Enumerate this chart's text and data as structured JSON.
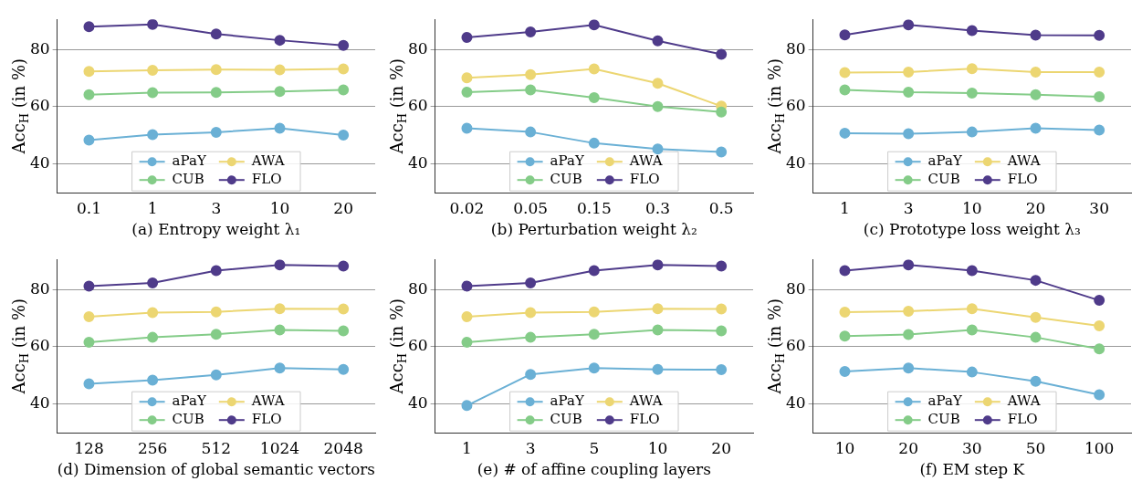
{
  "chart_data": [
    {
      "type": "line",
      "xlabel": "(a) Entropy weight λ₁",
      "ylabel": "Acc$_{H}$ (in %)",
      "categories": [
        "0.1",
        "1",
        "3",
        "10",
        "20"
      ],
      "ylim": [
        30,
        90.5
      ],
      "yticks": [
        40,
        60,
        80
      ],
      "grid": "y",
      "legend": "bottom",
      "marker": "circle",
      "series": [
        {
          "name": "aPaY",
          "color": "#6ab0d5",
          "values": [
            48.4,
            50.3,
            51.1,
            52.5,
            50.1
          ]
        },
        {
          "name": "CUB",
          "color": "#84cc88",
          "values": [
            64.2,
            64.9,
            65.0,
            65.3,
            65.9
          ]
        },
        {
          "name": "AWA",
          "color": "#ecd672",
          "values": [
            72.3,
            72.7,
            73.0,
            72.9,
            73.2
          ]
        },
        {
          "name": "FLO",
          "color": "#4f3b8a",
          "values": [
            87.9,
            88.7,
            85.4,
            83.2,
            81.4
          ]
        }
      ]
    },
    {
      "type": "line",
      "xlabel": "(b) Perturbation weight λ₂",
      "ylabel": "Acc$_{H}$ (in %)",
      "categories": [
        "0.02",
        "0.05",
        "0.15",
        "0.3",
        "0.5"
      ],
      "ylim": [
        30,
        90.5
      ],
      "yticks": [
        40,
        60,
        80
      ],
      "grid": "y",
      "legend": "bottom",
      "marker": "circle",
      "series": [
        {
          "name": "aPaY",
          "color": "#6ab0d5",
          "values": [
            52.5,
            51.2,
            47.3,
            45.3,
            44.2
          ]
        },
        {
          "name": "CUB",
          "color": "#84cc88",
          "values": [
            65.1,
            65.9,
            63.2,
            60.1,
            58.2
          ]
        },
        {
          "name": "AWA",
          "color": "#ecd672",
          "values": [
            70.1,
            71.2,
            73.2,
            68.2,
            60.2
          ]
        },
        {
          "name": "FLO",
          "color": "#4f3b8a",
          "values": [
            84.2,
            86.1,
            88.6,
            83.0,
            78.3
          ]
        }
      ]
    },
    {
      "type": "line",
      "xlabel": "(c) Prototype loss weight λ₃",
      "ylabel": "Acc$_{H}$ (in %)",
      "categories": [
        "1",
        "3",
        "10",
        "20",
        "30"
      ],
      "ylim": [
        30,
        90.5
      ],
      "yticks": [
        40,
        60,
        80
      ],
      "grid": "y",
      "legend": "bottom",
      "marker": "circle",
      "series": [
        {
          "name": "aPaY",
          "color": "#6ab0d5",
          "values": [
            50.8,
            50.6,
            51.2,
            52.5,
            51.9
          ]
        },
        {
          "name": "CUB",
          "color": "#84cc88",
          "values": [
            65.9,
            65.1,
            64.8,
            64.2,
            63.5
          ]
        },
        {
          "name": "AWA",
          "color": "#ecd672",
          "values": [
            71.9,
            72.1,
            73.3,
            72.1,
            72.1
          ]
        },
        {
          "name": "FLO",
          "color": "#4f3b8a",
          "values": [
            85.1,
            88.6,
            86.6,
            85.0,
            84.9
          ]
        }
      ]
    },
    {
      "type": "line",
      "xlabel": "(d) Dimension of global semantic vectors",
      "ylabel": "Acc$_{H}$ (in %)",
      "categories": [
        "128",
        "256",
        "512",
        "1024",
        "2048"
      ],
      "ylim": [
        30,
        90.5
      ],
      "yticks": [
        40,
        60,
        80
      ],
      "grid": "y",
      "legend": "bottom",
      "marker": "circle",
      "series": [
        {
          "name": "aPaY",
          "color": "#6ab0d5",
          "values": [
            47.1,
            48.4,
            50.2,
            52.6,
            52.1
          ]
        },
        {
          "name": "CUB",
          "color": "#84cc88",
          "values": [
            61.6,
            63.3,
            64.4,
            65.9,
            65.6
          ]
        },
        {
          "name": "AWA",
          "color": "#ecd672",
          "values": [
            70.5,
            71.9,
            72.2,
            73.3,
            73.2
          ]
        },
        {
          "name": "FLO",
          "color": "#4f3b8a",
          "values": [
            81.2,
            82.3,
            86.6,
            88.6,
            88.2
          ]
        }
      ]
    },
    {
      "type": "line",
      "xlabel": "(e) # of affine coupling layers",
      "ylabel": "Acc$_{H}$ (in %)",
      "categories": [
        "1",
        "3",
        "5",
        "10",
        "20"
      ],
      "ylim": [
        30,
        90.5
      ],
      "yticks": [
        40,
        60,
        80
      ],
      "grid": "y",
      "legend": "bottom",
      "marker": "circle",
      "series": [
        {
          "name": "aPaY",
          "color": "#6ab0d5",
          "values": [
            39.5,
            50.4,
            52.6,
            52.1,
            52.0
          ]
        },
        {
          "name": "CUB",
          "color": "#84cc88",
          "values": [
            61.6,
            63.3,
            64.4,
            65.9,
            65.6
          ]
        },
        {
          "name": "AWA",
          "color": "#ecd672",
          "values": [
            70.5,
            71.9,
            72.2,
            73.3,
            73.2
          ]
        },
        {
          "name": "FLO",
          "color": "#4f3b8a",
          "values": [
            81.2,
            82.3,
            86.6,
            88.6,
            88.2
          ]
        }
      ]
    },
    {
      "type": "line",
      "xlabel": "(f) EM step K",
      "ylabel": "Acc$_{H}$ (in %)",
      "categories": [
        "10",
        "20",
        "30",
        "50",
        "100"
      ],
      "ylim": [
        30,
        90.5
      ],
      "yticks": [
        40,
        60,
        80
      ],
      "grid": "y",
      "legend": "bottom",
      "marker": "circle",
      "series": [
        {
          "name": "aPaY",
          "color": "#6ab0d5",
          "values": [
            51.4,
            52.6,
            51.2,
            48.0,
            43.3
          ]
        },
        {
          "name": "CUB",
          "color": "#84cc88",
          "values": [
            63.7,
            64.3,
            65.9,
            63.3,
            59.3
          ]
        },
        {
          "name": "AWA",
          "color": "#ecd672",
          "values": [
            72.1,
            72.4,
            73.3,
            70.3,
            67.3
          ]
        },
        {
          "name": "FLO",
          "color": "#4f3b8a",
          "values": [
            86.6,
            88.6,
            86.6,
            83.2,
            76.2
          ]
        }
      ]
    }
  ]
}
